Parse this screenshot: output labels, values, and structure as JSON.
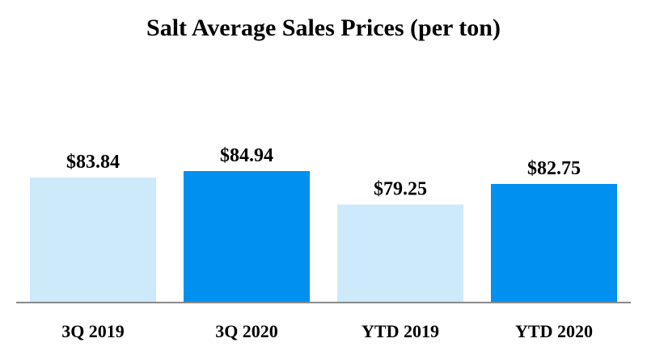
{
  "chart_data": {
    "type": "bar",
    "title": "Salt Average Sales Prices (per ton)",
    "categories": [
      "3Q 2019",
      "3Q 2020",
      "YTD 2019",
      "YTD 2020"
    ],
    "values": [
      83.84,
      84.94,
      79.25,
      82.75
    ],
    "value_labels": [
      "$83.84",
      "$84.94",
      "$79.25",
      "$82.75"
    ],
    "bar_colors": [
      "#cdeafb",
      "#0090f0",
      "#cdeafb",
      "#0090f0"
    ],
    "xlabel": "",
    "ylabel": "",
    "grid": false,
    "legend": "none"
  }
}
